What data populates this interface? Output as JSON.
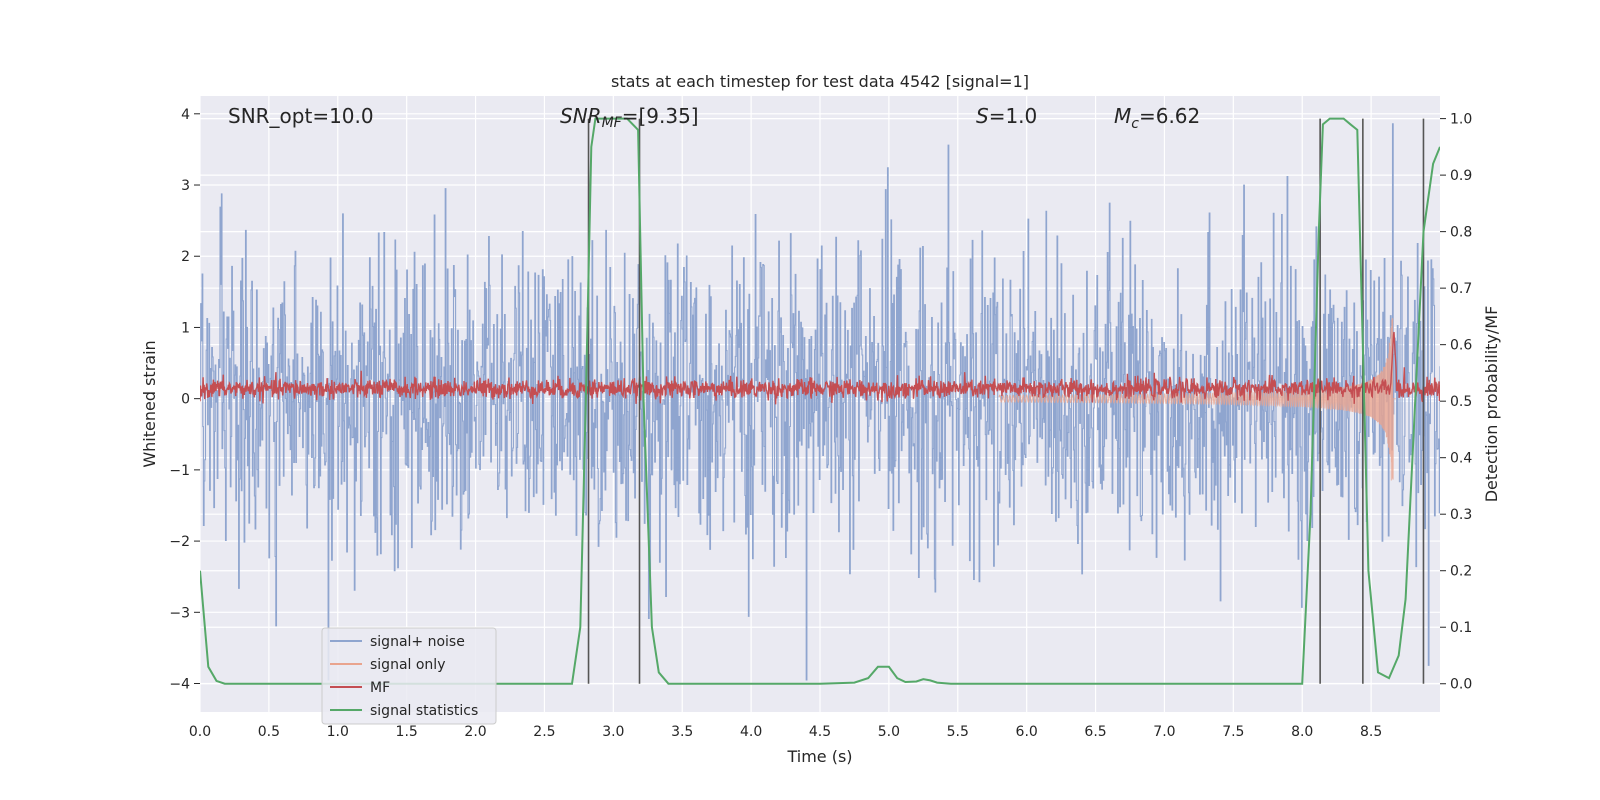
{
  "chart_data": {
    "type": "line",
    "title": "stats at each timestep for test data 4542 [signal=1]",
    "xlabel": "Time (s)",
    "ylabel": "Whitened strain",
    "ylabel_right": "Detection probability/MF",
    "xlim": [
      0,
      9.0
    ],
    "ylim": [
      -4.4,
      4.25
    ],
    "ylim_right": [
      -0.05,
      1.04
    ],
    "x_ticks": [
      "0.0",
      "0.5",
      "1.0",
      "1.5",
      "2.0",
      "2.5",
      "3.0",
      "3.5",
      "4.0",
      "4.5",
      "5.0",
      "5.5",
      "6.0",
      "6.5",
      "7.0",
      "7.5",
      "8.0",
      "8.5"
    ],
    "y_ticks": [
      "4",
      "3",
      "2",
      "1",
      "0",
      "−1",
      "−2",
      "−3",
      "−4"
    ],
    "y_ticks_right": [
      "1.0",
      "0.9",
      "0.8",
      "0.7",
      "0.6",
      "0.5",
      "0.4",
      "0.3",
      "0.2",
      "0.1",
      "0.0"
    ],
    "annotations": {
      "snr_opt": "SNR_opt=10.0",
      "snr_mf_name": "SNR",
      "snr_mf_sub": "MF",
      "snr_mf_value": "=[9.35]",
      "s_name": "S",
      "s_value": "=1.0",
      "mc_name": "M",
      "mc_sub": "c",
      "mc_value": "=6.62"
    },
    "colors": {
      "signal_noise": "#8fa5cf",
      "signal_only": "#e9a48e",
      "mf": "#c44e52",
      "signal_statistics": "#55a868",
      "vline": "#555555",
      "background": "#eaeaf2",
      "grid": "#ffffff"
    },
    "legend_position": "lower-left",
    "series": [
      {
        "name": "signal+ noise",
        "description": "whitened strain noise, amplitude ~±2 with spikes to ±3.9"
      },
      {
        "name": "signal only",
        "description": "chirp growing from ~0 at t=6 to peak ~1.1 near t=8.65"
      },
      {
        "name": "MF",
        "description": "matched filter output ~0.15 with peak ~1.0 at t=8.66"
      },
      {
        "name": "signal statistics",
        "x": [
          0.0,
          0.06,
          0.12,
          0.18,
          0.25,
          0.5,
          1.0,
          1.5,
          2.0,
          2.5,
          2.7,
          2.76,
          2.8,
          2.84,
          2.87,
          3.0,
          3.1,
          3.18,
          3.22,
          3.28,
          3.33,
          3.4,
          3.5,
          4.0,
          4.5,
          4.75,
          4.85,
          4.92,
          5.0,
          5.06,
          5.12,
          5.2,
          5.25,
          5.3,
          5.35,
          5.45,
          5.6,
          6.0,
          7.0,
          8.0,
          8.06,
          8.12,
          8.15,
          8.2,
          8.25,
          8.3,
          8.35,
          8.4,
          8.44,
          8.48,
          8.55,
          8.63,
          8.7,
          8.75,
          8.82,
          8.88,
          8.95,
          9.0
        ],
        "y": [
          0.2,
          0.03,
          0.005,
          0.0,
          0.0,
          0.0,
          0.0,
          0.0,
          0.0,
          0.0,
          0.0,
          0.1,
          0.5,
          0.95,
          1.0,
          1.0,
          1.0,
          0.98,
          0.5,
          0.1,
          0.02,
          0.0,
          0.0,
          0.0,
          0.0,
          0.002,
          0.01,
          0.03,
          0.03,
          0.01,
          0.003,
          0.004,
          0.008,
          0.006,
          0.002,
          0.0,
          0.0,
          0.0,
          0.0,
          0.0,
          0.3,
          0.8,
          0.99,
          1.0,
          1.0,
          1.0,
          0.99,
          0.98,
          0.6,
          0.2,
          0.02,
          0.01,
          0.05,
          0.15,
          0.5,
          0.8,
          0.92,
          0.95
        ]
      }
    ],
    "vlines_x": [
      2.82,
      3.19,
      8.13,
      8.44,
      8.88
    ]
  }
}
